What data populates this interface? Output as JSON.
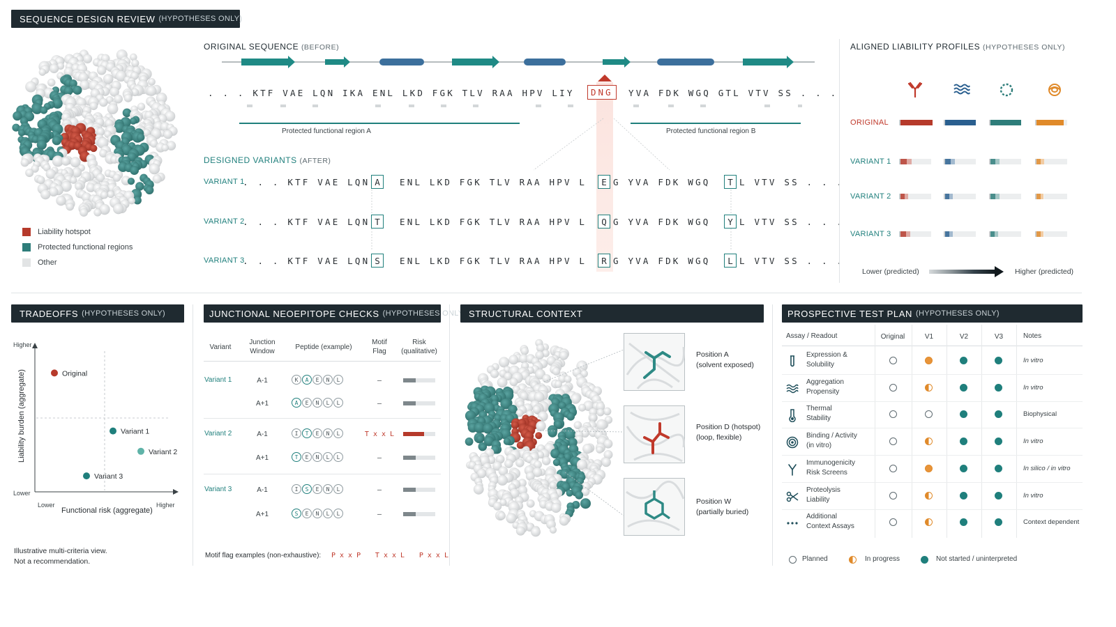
{
  "header": {
    "title": "SEQUENCE DESIGN REVIEW",
    "title_sub": "(HYPOTHESES ONLY)"
  },
  "structure_legend": [
    {
      "label": "Liability hotspot",
      "color": "#b63a2b"
    },
    {
      "label": "Protected functional regions",
      "color": "#2e7d7a"
    },
    {
      "label": "Other",
      "color": "#e2e4e5"
    }
  ],
  "original_sequence": {
    "title": "ORIGINAL SEQUENCE",
    "title_sub": "(BEFORE)",
    "sequence_left": ". . .  KTF  VAE  LQN  IKA  ENL  LKD  FGK  TLV  RAA  HPV  LIY",
    "hotspot": "DNG",
    "sequence_right": "YVA  FDK  WGQ  GTL  VTV  SS . . .",
    "region_a": "Protected functional region A",
    "region_b": "Protected functional region B"
  },
  "designed_variants": {
    "title": "DESIGNED VARIANTS",
    "title_sub": "(AFTER)",
    "rows": [
      {
        "label": "VARIANT 1",
        "pre": ". . .  KTF  VAE  LQN  I",
        "m1": "A",
        "mid": "ENL  LKD  FGK  TLV  RAA  HPV  L",
        "m2": "E",
        "mid2": "G  YVA  FDK  WGQ",
        "m3": "T",
        "post": "L  VTV  SS . . ."
      },
      {
        "label": "VARIANT 2",
        "pre": ". . .  KTF  VAE  LQN  I",
        "m1": "T",
        "mid": "ENL  LKD  FGK  TLV  RAA  HPV  L",
        "m2": "Q",
        "mid2": "G  YVA  FDK  WGQ",
        "m3": "Y",
        "post": "L  VTV  SS . . ."
      },
      {
        "label": "VARIANT 3",
        "pre": ". . .  KTF  VAE  LQN  I",
        "m1": "S",
        "mid": "ENL  LKD  FGK  TLV  RAA  HPV  L",
        "m2": "R",
        "mid2": "G  YVA  FDK  WGQ",
        "m3": "L",
        "post": "L  VTV  SS . . ."
      }
    ]
  },
  "liability_profiles": {
    "title": "ALIGNED LIABILITY PROFILES",
    "title_sub": "(HYPOTHESES ONLY)",
    "icons": [
      "antibody-icon",
      "aggregation-icon",
      "dotted-ring-icon",
      "knot-icon"
    ],
    "colors": [
      "#b63a2b",
      "#2a5f8f",
      "#2e7d7a",
      "#e08a2a"
    ],
    "rows": [
      {
        "label": "ORIGINAL",
        "levels": [
          1.0,
          0.95,
          0.95,
          0.85
        ]
      },
      {
        "label": "VARIANT 1",
        "levels": [
          0.5,
          0.45,
          0.4,
          0.35
        ]
      },
      {
        "label": "VARIANT 2",
        "levels": [
          0.35,
          0.35,
          0.4,
          0.3
        ]
      },
      {
        "label": "VARIANT 3",
        "levels": [
          0.45,
          0.35,
          0.35,
          0.3
        ]
      }
    ],
    "scale_low": "Lower (predicted)",
    "scale_high": "Higher (predicted)"
  },
  "tradeoffs": {
    "title": "TRADEOFFS",
    "title_sub": "(HYPOTHESES ONLY)",
    "chart_data": {
      "type": "scatter",
      "xlabel": "Functional risk (aggregate)",
      "ylabel": "Liability burden (aggregate)",
      "x_low": "Lower",
      "x_high": "Higher",
      "y_low": "Lower",
      "y_high": "Higher",
      "xlim": [
        0,
        1
      ],
      "ylim": [
        0,
        1
      ],
      "points": [
        {
          "name": "Original",
          "x": 0.14,
          "y": 0.82,
          "color": "#b63a2b"
        },
        {
          "name": "Variant 1",
          "x": 0.56,
          "y": 0.42,
          "color": "#1f7f7c"
        },
        {
          "name": "Variant 2",
          "x": 0.76,
          "y": 0.28,
          "color": "#5fb3a8"
        },
        {
          "name": "Variant 3",
          "x": 0.37,
          "y": 0.11,
          "color": "#1f7f7c"
        }
      ]
    },
    "note_line1": "Illustrative multi-criteria view.",
    "note_line2": "Not a recommendation."
  },
  "neoepitope": {
    "title": "JUNCTIONAL NEOEPITOPE CHECKS",
    "title_sub": "(HYPOTHESES ONLY)",
    "columns": [
      "Variant",
      "Junction Window",
      "Peptide (example)",
      "Motif Flag",
      "Risk (qualitative)"
    ],
    "rows": [
      {
        "variant": "Variant 1",
        "window": "A-1",
        "peptide": [
          "K",
          "A",
          "E",
          "N",
          "L"
        ],
        "hl": 1,
        "flag": "—",
        "risk": 0.4,
        "risk_color": "#7e878b"
      },
      {
        "variant": "",
        "window": "A+1",
        "peptide": [
          "A",
          "E",
          "N",
          "L",
          "L"
        ],
        "hl": 0,
        "flag": "—",
        "risk": 0.4,
        "risk_color": "#7e878b"
      },
      {
        "variant": "Variant 2",
        "window": "A-1",
        "peptide": [
          "I",
          "T",
          "E",
          "N",
          "L"
        ],
        "hl": 1,
        "flag": "T x x L",
        "risk": 0.65,
        "risk_color": "#b63a2b"
      },
      {
        "variant": "",
        "window": "A+1",
        "peptide": [
          "T",
          "E",
          "N",
          "L",
          "L"
        ],
        "hl": 0,
        "flag": "—",
        "risk": 0.4,
        "risk_color": "#7e878b"
      },
      {
        "variant": "Variant 3",
        "window": "A-1",
        "peptide": [
          "I",
          "S",
          "E",
          "N",
          "L"
        ],
        "hl": 1,
        "flag": "—",
        "risk": 0.4,
        "risk_color": "#7e878b"
      },
      {
        "variant": "",
        "window": "A+1",
        "peptide": [
          "S",
          "E",
          "N",
          "L",
          "L"
        ],
        "hl": 0,
        "flag": "—",
        "risk": 0.4,
        "risk_color": "#7e878b"
      }
    ],
    "motif_label": "Motif flag examples (non-exhaustive):",
    "motifs": [
      "P x x P",
      "T x x L",
      "P x x L"
    ]
  },
  "structural_context": {
    "title": "STRUCTURAL CONTEXT",
    "positions": [
      {
        "line1": "Position A",
        "line2": "(solvent exposed)"
      },
      {
        "line1": "Position D (hotspot)",
        "line2": "(loop, flexible)"
      },
      {
        "line1": "Position W",
        "line2": "(partially buried)"
      }
    ]
  },
  "test_plan": {
    "title": "PROSPECTIVE TEST PLAN",
    "title_sub": "(HYPOTHESES ONLY)",
    "columns": [
      "Assay / Readout",
      "Original",
      "V1",
      "V2",
      "V3",
      "Notes"
    ],
    "rows": [
      {
        "icon": "tube-icon",
        "l1": "Expression &",
        "l2": "Solubility",
        "s": [
          "open",
          "half2",
          "done",
          "done"
        ],
        "note": "In vitro",
        "italic": true
      },
      {
        "icon": "waves-icon",
        "l1": "Aggregation",
        "l2": "Propensity",
        "s": [
          "open",
          "half",
          "done",
          "done"
        ],
        "note": "In vitro",
        "italic": true
      },
      {
        "icon": "thermometer-icon",
        "l1": "Thermal",
        "l2": "Stability",
        "s": [
          "open",
          "open",
          "done",
          "done"
        ],
        "note": "Biophysical",
        "italic": false
      },
      {
        "icon": "target-icon",
        "l1": "Binding / Activity",
        "l2": "(in vitro)",
        "s": [
          "open",
          "half",
          "done",
          "done"
        ],
        "note": "In vitro",
        "italic": true
      },
      {
        "icon": "antibody-icon",
        "l1": "Immunogenicity",
        "l2": "Risk Screens",
        "s": [
          "open",
          "half2",
          "done",
          "done"
        ],
        "note": "In silico / in vitro",
        "italic": true
      },
      {
        "icon": "scissors-icon",
        "l1": "Proteolysis",
        "l2": "Liability",
        "s": [
          "open",
          "half",
          "done",
          "done"
        ],
        "note": "In vitro",
        "italic": true
      },
      {
        "icon": "dots-icon",
        "l1": "Additional",
        "l2": "Context Assays",
        "s": [
          "open",
          "half",
          "done",
          "done"
        ],
        "note": "Context dependent",
        "italic": false
      }
    ],
    "legend": [
      "Planned",
      "In progress",
      "Not started / uninterpreted"
    ]
  }
}
